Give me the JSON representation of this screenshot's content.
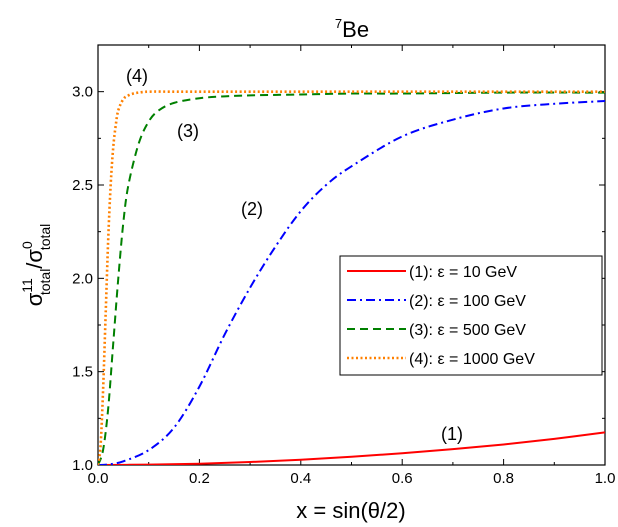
{
  "chart_data": {
    "type": "line",
    "title": {
      "sup": "7",
      "text": "Be"
    },
    "xlabel": "x = sin(θ/2)",
    "ylabel": {
      "base": "σ",
      "sup1": "11",
      "sub1": "total",
      "slash": "/",
      "base2": "σ",
      "sup2": "0",
      "sub2": "total"
    },
    "xlim": [
      0,
      1.0
    ],
    "ylim": [
      1.0,
      3.25
    ],
    "xticks": [
      0.0,
      0.2,
      0.4,
      0.6,
      0.8,
      1.0
    ],
    "xtick_labels": [
      "0.0",
      "0.2",
      "0.4",
      "0.6",
      "0.8",
      "1.0"
    ],
    "yticks": [
      1.0,
      1.5,
      2.0,
      2.5,
      3.0
    ],
    "ytick_labels": [
      "1.0",
      "1.5",
      "2.0",
      "2.5",
      "3.0"
    ],
    "grid": false,
    "legend_position": "middle-right",
    "series": [
      {
        "name": "(1): ε = 10 GeV",
        "label": "(1)",
        "color": "#ff0000",
        "dash": "solid",
        "x": [
          0,
          0.1,
          0.2,
          0.3,
          0.4,
          0.5,
          0.6,
          0.7,
          0.8,
          0.9,
          1.0
        ],
        "y": [
          1.0,
          1.002,
          1.007,
          1.016,
          1.028,
          1.044,
          1.063,
          1.085,
          1.11,
          1.14,
          1.175
        ]
      },
      {
        "name": "(2): ε = 100 GeV",
        "label": "(2)",
        "color": "#0000ff",
        "dash": "dashdot",
        "x": [
          0,
          0.02,
          0.05,
          0.1,
          0.15,
          0.2,
          0.25,
          0.3,
          0.35,
          0.4,
          0.45,
          0.5,
          0.6,
          0.7,
          0.8,
          0.9,
          1.0
        ],
        "y": [
          1.0,
          1.003,
          1.02,
          1.08,
          1.2,
          1.42,
          1.7,
          1.95,
          2.17,
          2.36,
          2.5,
          2.6,
          2.76,
          2.85,
          2.91,
          2.935,
          2.95
        ]
      },
      {
        "name": "(3): ε = 500 GeV",
        "label": "(3)",
        "color": "#008000",
        "dash": "dashed",
        "x": [
          0,
          0.01,
          0.02,
          0.03,
          0.04,
          0.05,
          0.06,
          0.08,
          0.1,
          0.12,
          0.15,
          0.2,
          0.25,
          0.3,
          0.4,
          0.5,
          0.6,
          0.8,
          1.0
        ],
        "y": [
          1.0,
          1.08,
          1.3,
          1.65,
          2.0,
          2.3,
          2.5,
          2.72,
          2.84,
          2.9,
          2.94,
          2.965,
          2.975,
          2.98,
          2.985,
          2.99,
          2.99,
          2.995,
          2.995
        ]
      },
      {
        "name": "(4): ε = 1000 GeV",
        "label": "(4)",
        "color": "#ff8000",
        "dash": "dotted",
        "x": [
          0,
          0.005,
          0.01,
          0.015,
          0.02,
          0.025,
          0.03,
          0.035,
          0.04,
          0.05,
          0.06,
          0.07,
          0.08,
          0.1,
          0.15,
          0.2,
          0.3,
          0.5,
          1.0
        ],
        "y": [
          1.0,
          1.1,
          1.4,
          1.8,
          2.2,
          2.5,
          2.7,
          2.82,
          2.9,
          2.96,
          2.98,
          2.99,
          2.995,
          3.0,
          3.0,
          3.0,
          3.0,
          3.0,
          3.0
        ]
      }
    ]
  }
}
